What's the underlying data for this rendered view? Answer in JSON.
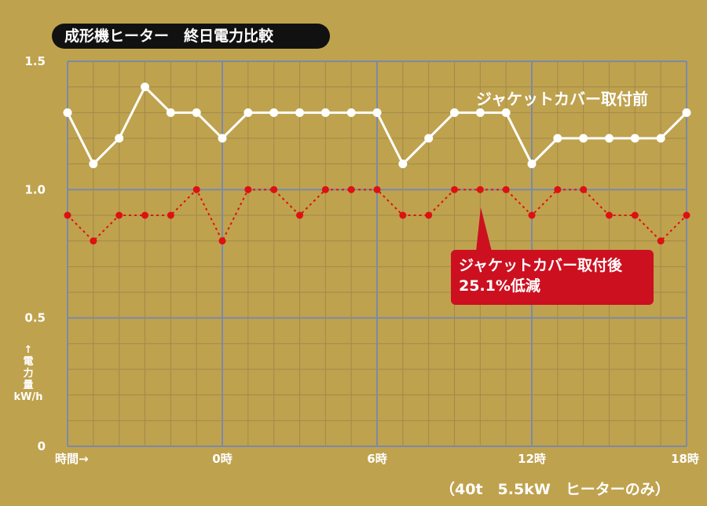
{
  "chart_data": {
    "type": "line",
    "title": "成形機ヒーター　終日電力比較",
    "ylabel": "電力量",
    "yunit": "kW/h",
    "ylim": [
      0,
      1.5
    ],
    "yticks": [
      "0",
      "0.5",
      "1.0",
      "1.5"
    ],
    "xtick_labels": [
      "時間→",
      "0時",
      "6時",
      "12時",
      "18時"
    ],
    "grid": true,
    "series": [
      {
        "name": "ジャケットカバー取付前",
        "color": "#ffffff",
        "style": "solid",
        "values": [
          1.3,
          1.1,
          1.2,
          1.4,
          1.3,
          1.3,
          1.2,
          1.3,
          1.3,
          1.3,
          1.3,
          1.3,
          1.3,
          1.1,
          1.2,
          1.3,
          1.3,
          1.3,
          1.1,
          1.2,
          1.2,
          1.2,
          1.2,
          1.2,
          1.3
        ]
      },
      {
        "name": "ジャケットカバー取付後",
        "color": "#dd1111",
        "style": "dotted",
        "values": [
          0.9,
          0.8,
          0.9,
          0.9,
          0.9,
          1.0,
          0.8,
          1.0,
          1.0,
          0.9,
          1.0,
          1.0,
          1.0,
          0.9,
          0.9,
          1.0,
          1.0,
          1.0,
          0.9,
          1.0,
          1.0,
          0.9,
          0.9,
          0.8,
          0.9
        ]
      }
    ],
    "annotation": {
      "line1": "ジャケットカバー取付後",
      "line2": "25.1%低減"
    },
    "footnote": "（40t　5.5kW　ヒーターのみ）"
  },
  "colors": {
    "background": "#bfa24e",
    "grid_minor": "#a08a4a",
    "grid_major": "#7a8aa8",
    "before": "#ffffff",
    "after": "#dd1111",
    "callout": "#cc1020"
  }
}
